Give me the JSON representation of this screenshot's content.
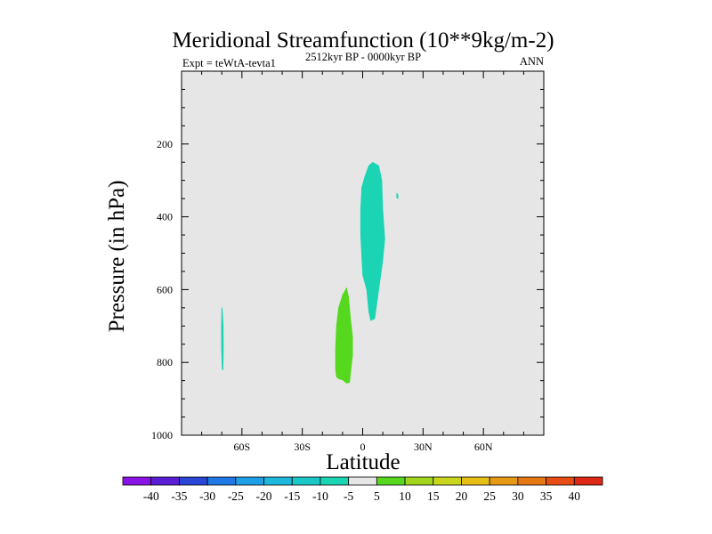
{
  "chart_data": {
    "type": "contour",
    "title": "Meridional Streamfunction (10**9kg/m-2)",
    "subtitle_left": "Expt = teWtA-tevta1",
    "subtitle_center": "2512kyr BP - 0000kyr BP",
    "subtitle_right": "ANN",
    "xlabel": "Latitude",
    "ylabel": "Pressure (in hPa)",
    "xlim": [
      -90,
      90
    ],
    "ylim": [
      1000,
      0
    ],
    "x_ticks": [
      {
        "value": -60,
        "label": "60S"
      },
      {
        "value": -30,
        "label": "30S"
      },
      {
        "value": 0,
        "label": "0"
      },
      {
        "value": 30,
        "label": "30N"
      },
      {
        "value": 60,
        "label": "60N"
      }
    ],
    "y_ticks": [
      {
        "value": 200,
        "label": "200"
      },
      {
        "value": 400,
        "label": "400"
      },
      {
        "value": 600,
        "label": "600"
      },
      {
        "value": 800,
        "label": "800"
      },
      {
        "value": 1000,
        "label": "1000"
      }
    ],
    "background_class": "-5 to 5",
    "background_color": "#e6e6e6",
    "regions": [
      {
        "name": "-10 to -5 cell (equator, upper)",
        "range": [
          -10,
          -5
        ],
        "color": "#1ad4b4",
        "polygon": [
          [
            5,
            250
          ],
          [
            8,
            260
          ],
          [
            9.5,
            300
          ],
          [
            10,
            380
          ],
          [
            11,
            460
          ],
          [
            10,
            520
          ],
          [
            8,
            600
          ],
          [
            6.5,
            660
          ],
          [
            6,
            680
          ],
          [
            4,
            685
          ],
          [
            3,
            660
          ],
          [
            2,
            600
          ],
          [
            0,
            560
          ],
          [
            -1,
            450
          ],
          [
            -1,
            380
          ],
          [
            -0.5,
            320
          ],
          [
            1,
            290
          ],
          [
            3,
            260
          ]
        ]
      },
      {
        "name": "-10 to -5 cell (60S sliver)",
        "range": [
          -10,
          -5
        ],
        "color": "#1ad4b4",
        "polygon": [
          [
            -69.8,
            650
          ],
          [
            -69.3,
            700
          ],
          [
            -69.2,
            760
          ],
          [
            -69.4,
            820
          ],
          [
            -69.8,
            820
          ],
          [
            -70.2,
            760
          ],
          [
            -70.2,
            700
          ],
          [
            -70.0,
            650
          ]
        ]
      },
      {
        "name": "-10 to -5 cell (18N fleck)",
        "range": [
          -10,
          -5
        ],
        "color": "#1ad4b4",
        "polygon": [
          [
            17.0,
            335
          ],
          [
            17.6,
            340
          ],
          [
            17.5,
            350
          ],
          [
            16.9,
            348
          ]
        ]
      },
      {
        "name": "5 to 10 cell (15S, lower)",
        "range": [
          5,
          10
        ],
        "color": "#55d81e",
        "polygon": [
          [
            -8,
            595
          ],
          [
            -7,
            620
          ],
          [
            -6,
            680
          ],
          [
            -5,
            730
          ],
          [
            -5,
            780
          ],
          [
            -6,
            830
          ],
          [
            -6.5,
            855
          ],
          [
            -8,
            857
          ],
          [
            -10,
            848
          ],
          [
            -12,
            845
          ],
          [
            -13,
            840
          ],
          [
            -13.5,
            820
          ],
          [
            -13.5,
            760
          ],
          [
            -13,
            700
          ],
          [
            -12,
            650
          ],
          [
            -10,
            615
          ]
        ]
      }
    ],
    "colorbar": {
      "labels": [
        "-40",
        "-35",
        "-30",
        "-25",
        "-20",
        "-15",
        "-10",
        "-5",
        "5",
        "10",
        "15",
        "20",
        "25",
        "30",
        "35",
        "40"
      ],
      "colors": [
        "#8a14e6",
        "#5a1ed6",
        "#2a46d6",
        "#1e78e6",
        "#1e9fe6",
        "#1eb8dc",
        "#1ac8c8",
        "#1ad4b4",
        "#e6e6e6",
        "#55d81e",
        "#a2d61e",
        "#c8d61e",
        "#e6be14",
        "#e69a14",
        "#e67814",
        "#e64c14",
        "#dc2814"
      ]
    }
  }
}
